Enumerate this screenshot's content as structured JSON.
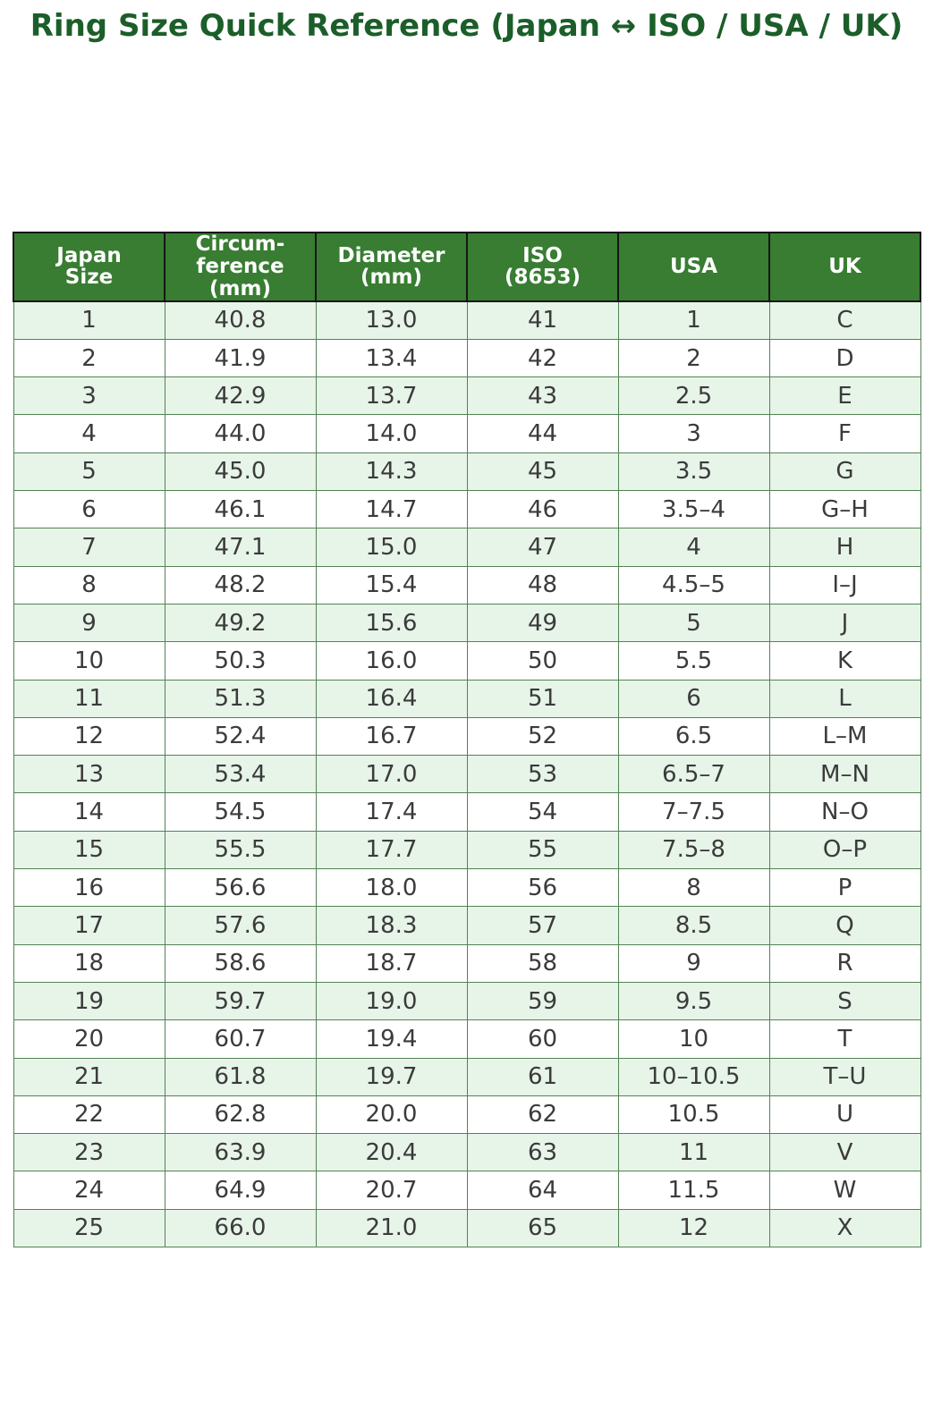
{
  "title": "Ring Size Quick Reference (Japan ↔ ISO / USA / UK)",
  "colors": {
    "title_text": "#1b5e29",
    "header_bg": "#387d32",
    "header_text": "#ffffff",
    "header_border": "#161616",
    "row_alt_bg": "#e7f4e8",
    "row_bg": "#ffffff",
    "cell_border": "#538355",
    "cell_text": "#3b3b3b",
    "page_bg": "#ffffff"
  },
  "chart_data": {
    "type": "table",
    "title": "Ring Size Quick Reference (Japan ↔ ISO / USA / UK)",
    "columns": [
      "Japan\nSize",
      "Circum-\nference\n(mm)",
      "Diameter\n(mm)",
      "ISO\n(8653)",
      "USA",
      "UK"
    ],
    "rows": [
      [
        "1",
        "40.8",
        "13.0",
        "41",
        "1",
        "C"
      ],
      [
        "2",
        "41.9",
        "13.4",
        "42",
        "2",
        "D"
      ],
      [
        "3",
        "42.9",
        "13.7",
        "43",
        "2.5",
        "E"
      ],
      [
        "4",
        "44.0",
        "14.0",
        "44",
        "3",
        "F"
      ],
      [
        "5",
        "45.0",
        "14.3",
        "45",
        "3.5",
        "G"
      ],
      [
        "6",
        "46.1",
        "14.7",
        "46",
        "3.5–4",
        "G–H"
      ],
      [
        "7",
        "47.1",
        "15.0",
        "47",
        "4",
        "H"
      ],
      [
        "8",
        "48.2",
        "15.4",
        "48",
        "4.5–5",
        "I–J"
      ],
      [
        "9",
        "49.2",
        "15.6",
        "49",
        "5",
        "J"
      ],
      [
        "10",
        "50.3",
        "16.0",
        "50",
        "5.5",
        "K"
      ],
      [
        "11",
        "51.3",
        "16.4",
        "51",
        "6",
        "L"
      ],
      [
        "12",
        "52.4",
        "16.7",
        "52",
        "6.5",
        "L–M"
      ],
      [
        "13",
        "53.4",
        "17.0",
        "53",
        "6.5–7",
        "M–N"
      ],
      [
        "14",
        "54.5",
        "17.4",
        "54",
        "7–7.5",
        "N–O"
      ],
      [
        "15",
        "55.5",
        "17.7",
        "55",
        "7.5–8",
        "O–P"
      ],
      [
        "16",
        "56.6",
        "18.0",
        "56",
        "8",
        "P"
      ],
      [
        "17",
        "57.6",
        "18.3",
        "57",
        "8.5",
        "Q"
      ],
      [
        "18",
        "58.6",
        "18.7",
        "58",
        "9",
        "R"
      ],
      [
        "19",
        "59.7",
        "19.0",
        "59",
        "9.5",
        "S"
      ],
      [
        "20",
        "60.7",
        "19.4",
        "60",
        "10",
        "T"
      ],
      [
        "21",
        "61.8",
        "19.7",
        "61",
        "10–10.5",
        "T–U"
      ],
      [
        "22",
        "62.8",
        "20.0",
        "62",
        "10.5",
        "U"
      ],
      [
        "23",
        "63.9",
        "20.4",
        "63",
        "11",
        "V"
      ],
      [
        "24",
        "64.9",
        "20.7",
        "64",
        "11.5",
        "W"
      ],
      [
        "25",
        "66.0",
        "21.0",
        "65",
        "12",
        "X"
      ]
    ]
  }
}
